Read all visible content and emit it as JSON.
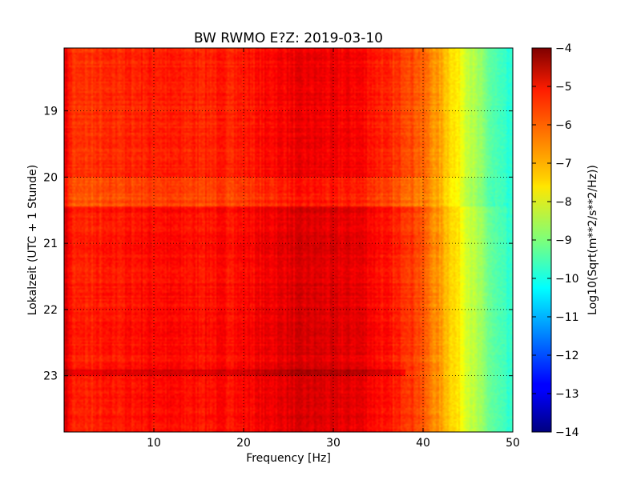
{
  "chart_data": {
    "type": "heatmap",
    "title": "BW RWMO E?Z: 2019-03-10",
    "xlabel": "Frequency [Hz]",
    "ylabel": "Lokalzeit (UTC + 1 Stunde)",
    "colorbar_label": "Log10(Sqrt(m**2/s**2/Hz))",
    "colormap": "jet",
    "xlim": [
      0,
      50
    ],
    "ylim": [
      18.05,
      23.85
    ],
    "y_inverted": true,
    "clim": [
      -14,
      -4
    ],
    "grid": true,
    "x_ticks": [
      10,
      20,
      30,
      40,
      50
    ],
    "x_tick_labels": [
      "10",
      "20",
      "30",
      "40",
      "50"
    ],
    "y_ticks": [
      19,
      20,
      21,
      22,
      23
    ],
    "y_tick_labels": [
      "19",
      "20",
      "21",
      "22",
      "23"
    ],
    "c_ticks": [
      -4,
      -5,
      -6,
      -7,
      -8,
      -9,
      -10,
      -11,
      -12,
      -13,
      -14
    ],
    "c_tick_labels": [
      "−4",
      "−5",
      "−6",
      "−7",
      "−8",
      "−9",
      "−10",
      "−11",
      "−12",
      "−13",
      "−14"
    ],
    "frequency_profile": {
      "frequency_hz": [
        0,
        1,
        5,
        10,
        15,
        20,
        25,
        28,
        30,
        33,
        35,
        37,
        38,
        39,
        40,
        41,
        42,
        43,
        44,
        45,
        46,
        47,
        48,
        49,
        50
      ],
      "log_psd": [
        -4.9,
        -5.8,
        -5.7,
        -5.5,
        -5.6,
        -5.5,
        -5.15,
        -5.1,
        -5.2,
        -5.2,
        -5.5,
        -5.8,
        -5.8,
        -6.0,
        -6.25,
        -6.6,
        -6.9,
        -7.3,
        -7.7,
        -8.2,
        -8.7,
        -9.1,
        -9.5,
        -9.8,
        -10.0
      ]
    },
    "time_features": [
      {
        "from_hour": 20.0,
        "to_hour": 20.45,
        "delta_log_psd": -0.35,
        "max_frequency_hz": 48
      },
      {
        "from_hour": 20.45,
        "to_hour": 23.85,
        "delta_log_psd": 0.2,
        "max_frequency_hz": 50
      },
      {
        "from_hour": 22.9,
        "to_hour": 23.0,
        "delta_log_psd": 0.5,
        "max_frequency_hz": 38
      }
    ]
  }
}
